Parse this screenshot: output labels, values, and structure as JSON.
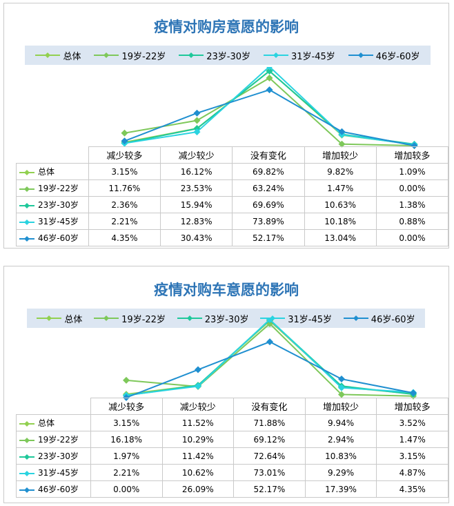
{
  "colors": [
    "#92d050",
    "#7ec85a",
    "#1ec89a",
    "#2ad3e0",
    "#1f8fd0"
  ],
  "chart_data": [
    {
      "type": "line",
      "title": "疫情对购房意愿的影响",
      "categories": [
        "减少较多",
        "减少较少",
        "没有变化",
        "增加较少",
        "增加较多"
      ],
      "series": [
        {
          "name": "总体",
          "values": [
            3.15,
            16.12,
            69.82,
            9.82,
            1.09
          ],
          "labels": [
            "3.15%",
            "16.12%",
            "69.82%",
            "9.82%",
            "1.09%"
          ]
        },
        {
          "name": "19岁-22岁",
          "values": [
            11.76,
            23.53,
            63.24,
            1.47,
            0.0
          ],
          "labels": [
            "11.76%",
            "23.53%",
            "63.24%",
            "1.47%",
            "0.00%"
          ]
        },
        {
          "name": "23岁-30岁",
          "values": [
            2.36,
            15.94,
            69.69,
            10.63,
            1.38
          ],
          "labels": [
            "2.36%",
            "15.94%",
            "69.69%",
            "10.63%",
            "1.38%"
          ]
        },
        {
          "name": "31岁-45岁",
          "values": [
            2.21,
            12.83,
            73.89,
            10.18,
            0.88
          ],
          "labels": [
            "2.21%",
            "12.83%",
            "73.89%",
            "10.18%",
            "0.88%"
          ]
        },
        {
          "name": "46岁-60岁",
          "values": [
            4.35,
            30.43,
            52.17,
            13.04,
            0.0
          ],
          "labels": [
            "4.35%",
            "30.43%",
            "52.17%",
            "13.04%",
            "0.00%"
          ]
        }
      ],
      "legend_position": "top",
      "data_table": true,
      "grid": false
    },
    {
      "type": "line",
      "title": "疫情对购车意愿的影响",
      "categories": [
        "减少较多",
        "减少较少",
        "没有变化",
        "增加较少",
        "增加较多"
      ],
      "series": [
        {
          "name": "总体",
          "values": [
            3.15,
            11.52,
            71.88,
            9.94,
            3.52
          ],
          "labels": [
            "3.15%",
            "11.52%",
            "71.88%",
            "9.94%",
            "3.52%"
          ]
        },
        {
          "name": "19岁-22岁",
          "values": [
            16.18,
            10.29,
            69.12,
            2.94,
            1.47
          ],
          "labels": [
            "16.18%",
            "10.29%",
            "69.12%",
            "2.94%",
            "1.47%"
          ]
        },
        {
          "name": "23岁-30岁",
          "values": [
            1.97,
            11.42,
            72.64,
            10.83,
            3.15
          ],
          "labels": [
            "1.97%",
            "11.42%",
            "72.64%",
            "10.83%",
            "3.15%"
          ]
        },
        {
          "name": "31岁-45岁",
          "values": [
            2.21,
            10.62,
            73.01,
            9.29,
            4.87
          ],
          "labels": [
            "2.21%",
            "10.62%",
            "73.01%",
            "9.29%",
            "4.87%"
          ]
        },
        {
          "name": "46岁-60岁",
          "values": [
            0.0,
            26.09,
            52.17,
            17.39,
            4.35
          ],
          "labels": [
            "0.00%",
            "26.09%",
            "52.17%",
            "17.39%",
            "4.35%"
          ]
        }
      ],
      "legend_position": "top",
      "data_table": true,
      "grid": false
    }
  ]
}
